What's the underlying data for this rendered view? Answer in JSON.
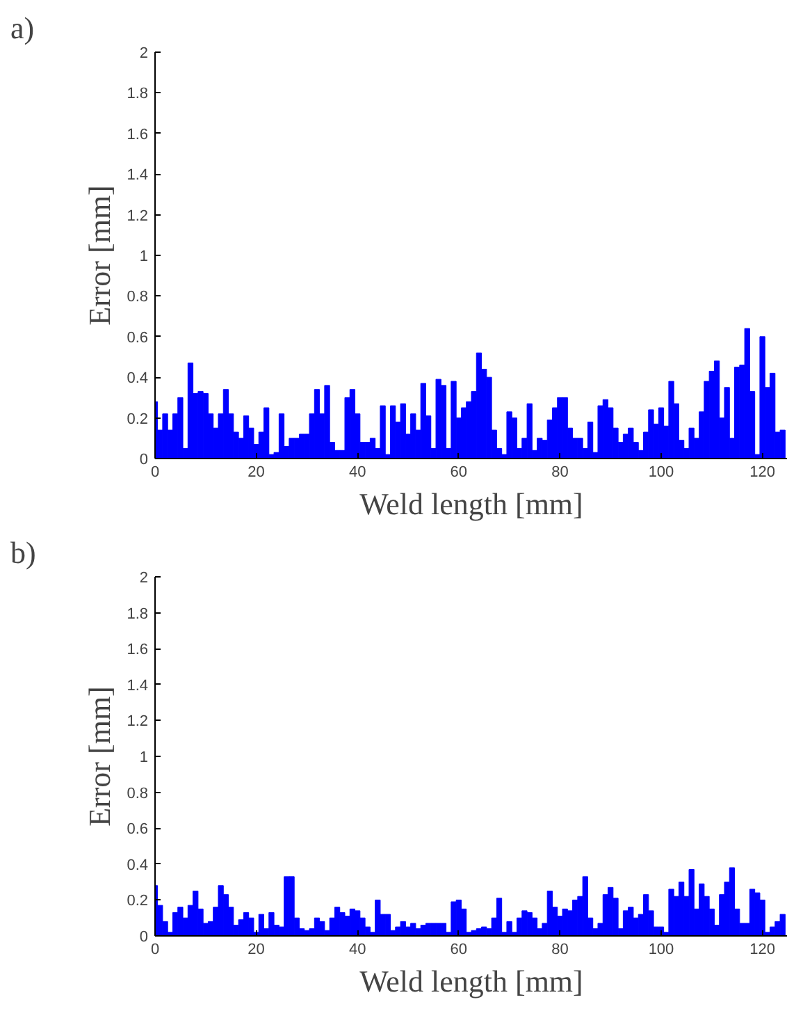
{
  "chart_data": [
    {
      "type": "bar",
      "title": "a)",
      "xlabel": "Weld length [mm]",
      "ylabel": "Error [mm]",
      "color": "#0000ff",
      "x": [
        0,
        1,
        2,
        3,
        4,
        5,
        6,
        7,
        8,
        9,
        10,
        11,
        12,
        13,
        14,
        15,
        16,
        17,
        18,
        19,
        20,
        21,
        22,
        23,
        24,
        25,
        26,
        27,
        28,
        29,
        30,
        31,
        32,
        33,
        34,
        35,
        36,
        37,
        38,
        39,
        40,
        41,
        42,
        43,
        44,
        45,
        46,
        47,
        48,
        49,
        50,
        51,
        52,
        53,
        54,
        55,
        56,
        57,
        58,
        59,
        60,
        61,
        62,
        63,
        64,
        65,
        66,
        67,
        68,
        69,
        70,
        71,
        72,
        73,
        74,
        75,
        76,
        77,
        78,
        79,
        80,
        81,
        82,
        83,
        84,
        85,
        86,
        87,
        88,
        89,
        90,
        91,
        92,
        93,
        94,
        95,
        96,
        97,
        98,
        99,
        100,
        101,
        102,
        103,
        104,
        105,
        106,
        107,
        108,
        109,
        110,
        111,
        112,
        113,
        114,
        115,
        116,
        117,
        118,
        119,
        120,
        121,
        122,
        123,
        124
      ],
      "values": [
        0.28,
        0.14,
        0.22,
        0.14,
        0.22,
        0.3,
        0.05,
        0.47,
        0.32,
        0.33,
        0.32,
        0.22,
        0.15,
        0.22,
        0.34,
        0.22,
        0.13,
        0.1,
        0.21,
        0.15,
        0.07,
        0.13,
        0.25,
        0.02,
        0.03,
        0.22,
        0.06,
        0.1,
        0.1,
        0.12,
        0.12,
        0.22,
        0.34,
        0.22,
        0.36,
        0.08,
        0.04,
        0.04,
        0.3,
        0.34,
        0.22,
        0.08,
        0.08,
        0.1,
        0.05,
        0.26,
        0.02,
        0.26,
        0.18,
        0.27,
        0.12,
        0.22,
        0.14,
        0.37,
        0.21,
        0.05,
        0.39,
        0.36,
        0.05,
        0.38,
        0.2,
        0.25,
        0.28,
        0.33,
        0.52,
        0.44,
        0.4,
        0.14,
        0.05,
        0.02,
        0.23,
        0.2,
        0.05,
        0.1,
        0.27,
        0.04,
        0.1,
        0.09,
        0.19,
        0.25,
        0.3,
        0.3,
        0.15,
        0.1,
        0.1,
        0.05,
        0.18,
        0.03,
        0.26,
        0.29,
        0.25,
        0.15,
        0.08,
        0.12,
        0.15,
        0.08,
        0.04,
        0.13,
        0.24,
        0.17,
        0.25,
        0.16,
        0.38,
        0.27,
        0.09,
        0.05,
        0.15,
        0.1,
        0.23,
        0.38,
        0.43,
        0.48,
        0.2,
        0.35,
        0.1,
        0.45,
        0.46,
        0.64,
        0.33,
        0.02,
        0.6,
        0.35,
        0.42,
        0.13,
        0.14
      ],
      "xlim": [
        0,
        125
      ],
      "ylim": [
        0,
        2
      ],
      "xticks": [
        0,
        20,
        40,
        60,
        80,
        100,
        120
      ],
      "yticks": [
        0,
        0.2,
        0.4,
        0.6,
        0.8,
        1,
        1.2,
        1.4,
        1.6,
        1.8,
        2
      ]
    },
    {
      "type": "bar",
      "title": "b)",
      "xlabel": "Weld length [mm]",
      "ylabel": "Error [mm]",
      "color": "#0000ff",
      "x": [
        0,
        1,
        2,
        3,
        4,
        5,
        6,
        7,
        8,
        9,
        10,
        11,
        12,
        13,
        14,
        15,
        16,
        17,
        18,
        19,
        20,
        21,
        22,
        23,
        24,
        25,
        26,
        27,
        28,
        29,
        30,
        31,
        32,
        33,
        34,
        35,
        36,
        37,
        38,
        39,
        40,
        41,
        42,
        43,
        44,
        45,
        46,
        47,
        48,
        49,
        50,
        51,
        52,
        53,
        54,
        55,
        56,
        57,
        58,
        59,
        60,
        61,
        62,
        63,
        64,
        65,
        66,
        67,
        68,
        69,
        70,
        71,
        72,
        73,
        74,
        75,
        76,
        77,
        78,
        79,
        80,
        81,
        82,
        83,
        84,
        85,
        86,
        87,
        88,
        89,
        90,
        91,
        92,
        93,
        94,
        95,
        96,
        97,
        98,
        99,
        100,
        101,
        102,
        103,
        104,
        105,
        106,
        107,
        108,
        109,
        110,
        111,
        112,
        113,
        114,
        115,
        116,
        117,
        118,
        119,
        120,
        121,
        122,
        123,
        124
      ],
      "values": [
        0.28,
        0.17,
        0.08,
        0.02,
        0.13,
        0.16,
        0.1,
        0.17,
        0.25,
        0.15,
        0.07,
        0.08,
        0.16,
        0.28,
        0.23,
        0.16,
        0.06,
        0.09,
        0.13,
        0.1,
        0.02,
        0.12,
        0.04,
        0.13,
        0.06,
        0.05,
        0.33,
        0.33,
        0.1,
        0.04,
        0.03,
        0.04,
        0.1,
        0.08,
        0.03,
        0.1,
        0.16,
        0.13,
        0.11,
        0.15,
        0.14,
        0.1,
        0.05,
        0.02,
        0.2,
        0.12,
        0.12,
        0.03,
        0.05,
        0.08,
        0.05,
        0.07,
        0.04,
        0.06,
        0.07,
        0.07,
        0.07,
        0.07,
        0.02,
        0.19,
        0.2,
        0.15,
        0.02,
        0.03,
        0.04,
        0.05,
        0.04,
        0.1,
        0.21,
        0.02,
        0.08,
        0.02,
        0.1,
        0.14,
        0.13,
        0.1,
        0.04,
        0.07,
        0.25,
        0.16,
        0.11,
        0.15,
        0.14,
        0.2,
        0.22,
        0.33,
        0.1,
        0.04,
        0.07,
        0.23,
        0.27,
        0.21,
        0.04,
        0.14,
        0.16,
        0.1,
        0.12,
        0.23,
        0.14,
        0.05,
        0.05,
        0.02,
        0.26,
        0.22,
        0.3,
        0.22,
        0.37,
        0.15,
        0.29,
        0.22,
        0.15,
        0.06,
        0.23,
        0.3,
        0.38,
        0.15,
        0.07,
        0.07,
        0.26,
        0.24,
        0.2,
        0.02,
        0.05,
        0.08,
        0.12
      ],
      "xlim": [
        0,
        125
      ],
      "ylim": [
        0,
        2
      ],
      "xticks": [
        0,
        20,
        40,
        60,
        80,
        100,
        120
      ],
      "yticks": [
        0,
        0.2,
        0.4,
        0.6,
        0.8,
        1,
        1.2,
        1.4,
        1.6,
        1.8,
        2
      ]
    }
  ]
}
